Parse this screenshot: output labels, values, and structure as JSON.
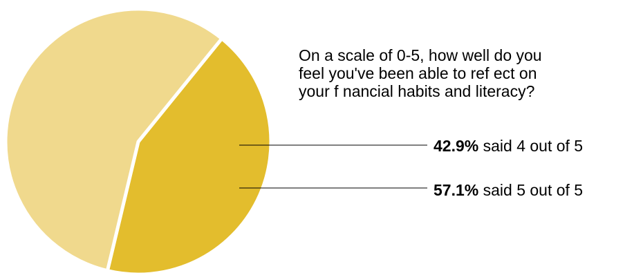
{
  "chart_data": {
    "type": "pie",
    "title": "",
    "question": [
      "On a scale of 0-5, how well do you",
      "feel you've been able to ref ect on",
      "your f nancial habits and literacy?"
    ],
    "slices": [
      {
        "label": "said 4 out of 5",
        "value": 42.9,
        "value_label": "42.9%",
        "color": "#E3BD2D"
      },
      {
        "label": "said 5 out of 5",
        "value": 57.1,
        "value_label": "57.1%",
        "color": "#F0D98D"
      }
    ],
    "legend": "none"
  }
}
